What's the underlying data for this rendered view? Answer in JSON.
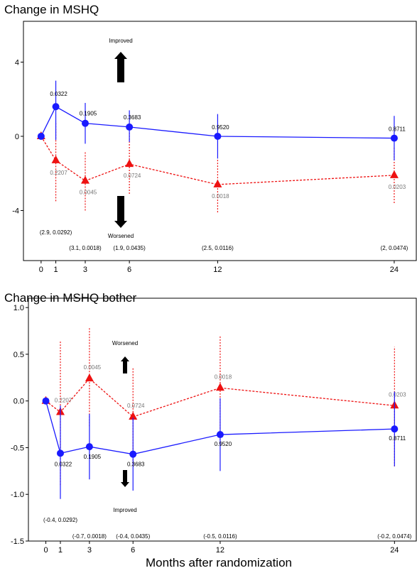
{
  "chart_data": [
    {
      "type": "line",
      "title": "Change in MSHQ",
      "x": [
        0,
        1,
        3,
        6,
        12,
        24
      ],
      "xticks": [
        "0",
        "1",
        "3",
        "6",
        "12",
        "24"
      ],
      "xlim": [
        -1.2,
        25.5
      ],
      "ylim": [
        -6.7,
        6.2
      ],
      "yticks": [
        4,
        0,
        -4
      ],
      "ytick_labels": [
        "4",
        "0",
        "-4"
      ],
      "series": [
        {
          "color": "#1a1aff",
          "style": "solid",
          "marker": "circle",
          "values": [
            0,
            1.6,
            0.7,
            0.5,
            0,
            -0.1
          ],
          "err_low": [
            0,
            -0.2,
            -0.4,
            -0.3,
            -1.2,
            -1.3
          ],
          "err_high": [
            0,
            3.0,
            1.8,
            1.4,
            1.2,
            1.1
          ],
          "p_labels": [
            "",
            "0.0322",
            "0.1905",
            "0.3683",
            "0.9520",
            "0.8711"
          ]
        },
        {
          "color": "#ee1111",
          "style": "dashed",
          "marker": "triangle",
          "values": [
            0,
            -1.3,
            -2.4,
            -1.5,
            -2.6,
            -2.1
          ],
          "err_low": [
            0,
            -3.5,
            -4.0,
            -3.1,
            -4.1,
            -3.6
          ],
          "err_high": [
            0,
            0.8,
            -0.8,
            0.2,
            -1.2,
            -0.6
          ],
          "p_labels": [
            "",
            "0.2207",
            "0.0045",
            "0.0724",
            "0.0018",
            "0.0203"
          ]
        }
      ],
      "annotations": {
        "up": "Improved",
        "down": "Worsened"
      },
      "diff_labels": [
        "(2.9, 0.0292)",
        "(3.1, 0.0018)",
        "(1.9, 0.0435)",
        "(2.5, 0.0116)",
        "(2, 0.0474)"
      ],
      "diff_x": [
        1,
        3,
        6,
        12,
        24
      ]
    },
    {
      "type": "line",
      "title": "Change in MSHQ bother",
      "xlabel": "Months after randomization",
      "x": [
        0,
        1,
        3,
        6,
        12,
        24
      ],
      "xticks": [
        "0",
        "1",
        "3",
        "6",
        "12",
        "24"
      ],
      "xlim": [
        -1.2,
        25.5
      ],
      "ylim": [
        -1.5,
        1.1
      ],
      "yticks": [
        1.0,
        0.5,
        0.0,
        -0.5,
        -1.0,
        -1.5
      ],
      "ytick_labels": [
        "1.0",
        "0.5",
        "0.0",
        "-0.5",
        "-1.0",
        "-1.5"
      ],
      "series": [
        {
          "color": "#1a1aff",
          "style": "solid",
          "marker": "circle",
          "values": [
            0,
            -0.56,
            -0.49,
            -0.57,
            -0.36,
            -0.3
          ],
          "err_low": [
            0,
            -1.05,
            -0.84,
            -0.96,
            -0.75,
            -0.7
          ],
          "err_high": [
            0,
            -0.05,
            -0.14,
            -0.18,
            0.03,
            0.1
          ],
          "p_labels": [
            "",
            "0.0322",
            "0.1905",
            "0.3683",
            "0.9520",
            "0.8711"
          ]
        },
        {
          "color": "#ee1111",
          "style": "dashed",
          "marker": "triangle",
          "values": [
            0,
            -0.12,
            0.24,
            -0.17,
            0.14,
            -0.05
          ],
          "err_low": [
            0,
            -0.9,
            -0.27,
            -0.7,
            -0.45,
            -0.7
          ],
          "err_high": [
            0,
            0.64,
            0.78,
            0.36,
            0.7,
            0.58
          ],
          "p_labels": [
            "",
            "0.2207",
            "0.0045",
            "0.0724",
            "0.0018",
            "0.0203"
          ]
        }
      ],
      "annotations": {
        "up": "Worsened",
        "down": "Improved"
      },
      "diff_labels": [
        "(-0.4, 0.0292)",
        "(-0.7, 0.0018)",
        "(-0.4, 0.0435)",
        "(-0.5, 0.0116)",
        "(-0.2, 0.0474)"
      ],
      "diff_x": [
        1,
        3,
        6,
        12,
        24
      ]
    }
  ]
}
